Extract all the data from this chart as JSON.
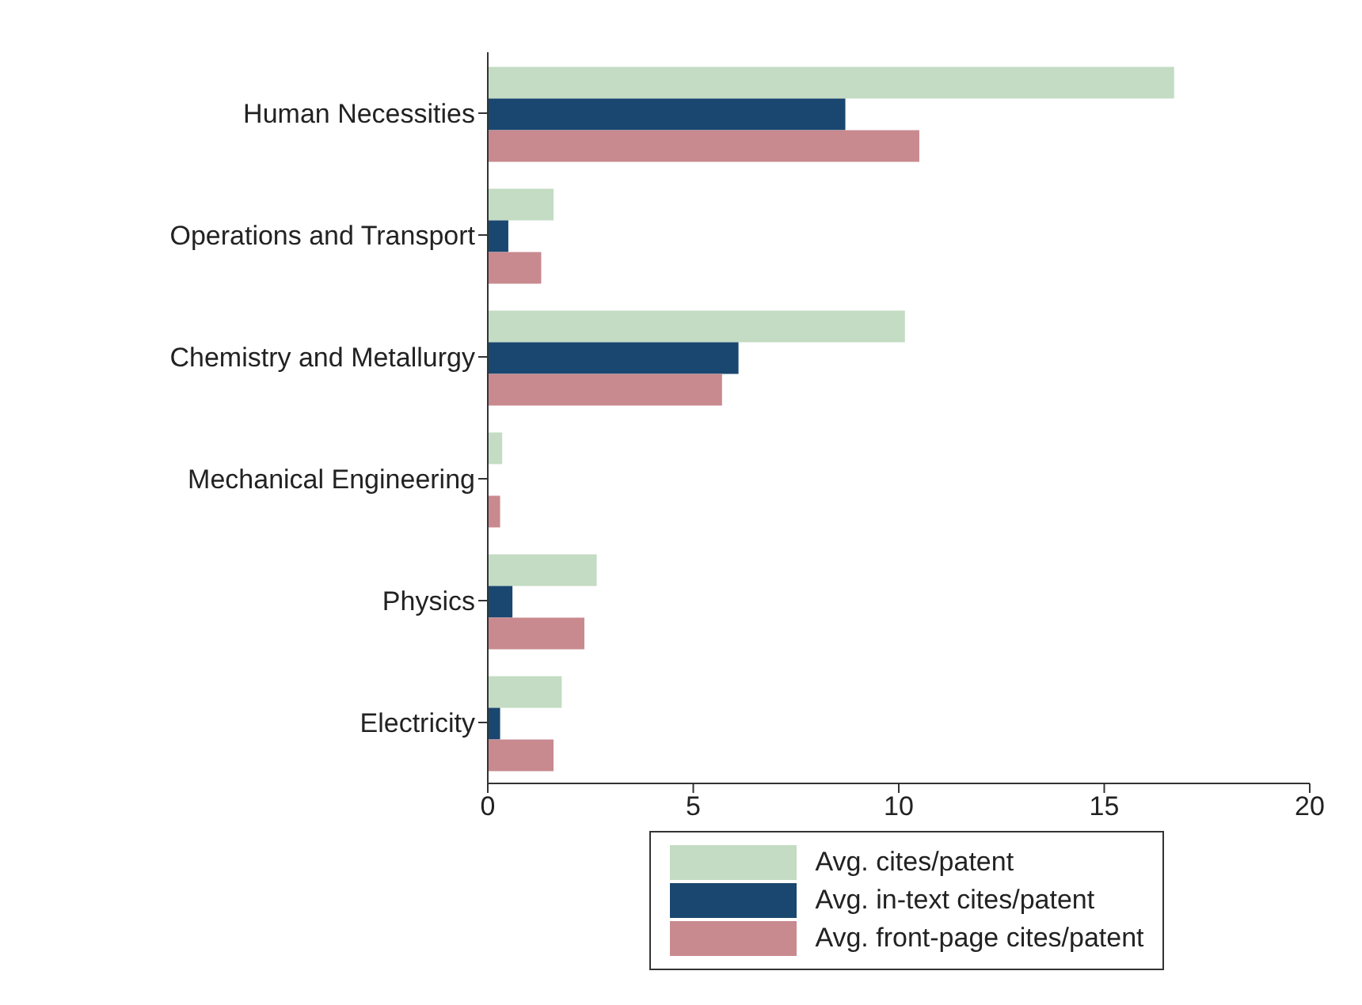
{
  "chart_data": {
    "type": "bar",
    "orientation": "horizontal",
    "categories": [
      "Human Necessities",
      "Operations and Transport",
      "Chemistry and Metallurgy",
      "Mechanical Engineering",
      "Physics",
      "Electricity"
    ],
    "series": [
      {
        "name": "Avg. cites/patent",
        "color": "#c3dcc3",
        "values": [
          16.7,
          1.6,
          10.15,
          0.35,
          2.65,
          1.8
        ]
      },
      {
        "name": "Avg. in-text cites/patent",
        "color": "#1a476f",
        "values": [
          8.7,
          0.5,
          6.1,
          0,
          0.6,
          0.3
        ]
      },
      {
        "name": "Avg. front-page cites/patent",
        "color": "#c8898f",
        "values": [
          10.5,
          1.3,
          5.7,
          0.3,
          2.35,
          1.6
        ]
      }
    ],
    "xlim": [
      0,
      20
    ],
    "xticks": [
      0,
      5,
      10,
      15,
      20
    ],
    "legend": "bottom"
  }
}
